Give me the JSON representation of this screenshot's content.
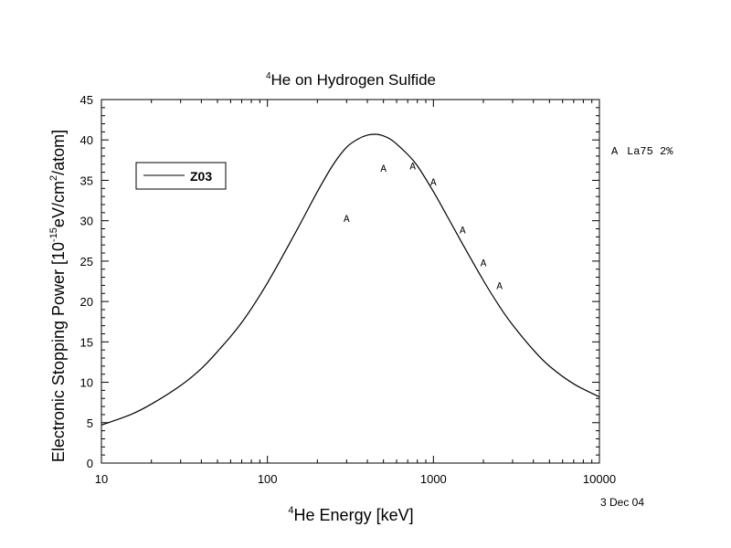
{
  "chart_data": {
    "type": "line",
    "title": {
      "sup": "4",
      "text": "He on Hydrogen Sulfide"
    },
    "xlabel": {
      "sup": "4",
      "text": "He Energy [keV]"
    },
    "ylabel": {
      "pre": "Electronic Stopping Power [10",
      "sup1": "-15",
      "mid": "eV/cm",
      "sup2": "2",
      "post": "/atom]"
    },
    "x_scale": "log",
    "xlim": [
      10,
      10000
    ],
    "ylim": [
      0,
      45
    ],
    "x_ticks": [
      10,
      100,
      1000,
      10000
    ],
    "x_tick_labels": [
      "10",
      "100",
      "1000",
      "10000"
    ],
    "y_ticks": [
      0,
      5,
      10,
      15,
      20,
      25,
      30,
      35,
      40,
      45
    ],
    "y_tick_labels": [
      "0",
      "5",
      "10",
      "15",
      "20",
      "25",
      "30",
      "35",
      "40",
      "45"
    ],
    "grid": false,
    "legend": {
      "placement": "upper-left",
      "entries": [
        "Z03"
      ]
    },
    "series": [
      {
        "name": "Z03",
        "style": "line",
        "x": [
          10,
          15,
          20,
          30,
          40,
          50,
          70,
          100,
          150,
          200,
          250,
          300,
          350,
          400,
          450,
          500,
          550,
          600,
          700,
          800,
          1000,
          1200,
          1500,
          2000,
          2500,
          3000,
          4000,
          5000,
          7000,
          10000
        ],
        "y": [
          4.7,
          6.0,
          7.3,
          9.6,
          11.7,
          13.8,
          17.4,
          22.3,
          28.8,
          33.6,
          37.0,
          39.1,
          40.1,
          40.6,
          40.7,
          40.5,
          40.1,
          39.5,
          38.2,
          36.8,
          33.6,
          30.7,
          27.1,
          22.6,
          19.4,
          17.1,
          14.0,
          12.0,
          9.8,
          8.2
        ]
      },
      {
        "name": "La75 2%",
        "marker_label": "A",
        "style": "points",
        "x": [
          300,
          500,
          750,
          1000,
          1500,
          2000,
          2500
        ],
        "y": [
          30.3,
          36.5,
          36.8,
          34.8,
          28.9,
          24.8,
          22.0
        ]
      }
    ],
    "side_legend": {
      "marker": "A",
      "label": "La75 2%"
    },
    "date_stamp": "3 Dec 04"
  }
}
